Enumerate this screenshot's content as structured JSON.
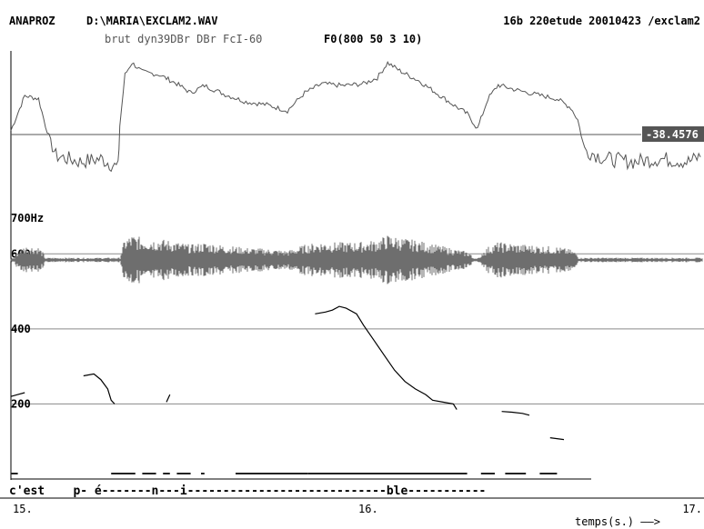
{
  "header": {
    "app": "ANAPROZ",
    "file": "D:\\MARIA\\EXCLAM2.WAV",
    "info": "16b 220etude 20010423 /exclam2",
    "params": "brut dyn39DBr  DBr FcI-60",
    "f0_params": "F0(800 50 3 10)"
  },
  "intensity_marker": "-38.4576",
  "freq_scale_label": "700Hz",
  "segmentation": "c'est    p- é-------n---i----------------------------ble-----------",
  "time_axis": {
    "unit_label": "temps(s.) ——>"
  },
  "colors": {
    "waveform": "#6e6e6e",
    "curve": "#000000",
    "gridline": "#8a8a8a"
  },
  "chart_data": {
    "type": "line",
    "title": "",
    "xlabel": "temps(s.)",
    "ylabel": "",
    "xlim": [
      15.0,
      17.0
    ],
    "ylim": [
      0,
      700
    ],
    "x_ticks": [
      {
        "v": 15.0,
        "label": "15."
      },
      {
        "v": 16.0,
        "label": "16."
      },
      {
        "v": 17.0,
        "label": "17."
      }
    ],
    "y_ticks": [
      {
        "v": 200,
        "label": "200"
      },
      {
        "v": 400,
        "label": "400"
      },
      {
        "v": 600,
        "label": "600"
      }
    ],
    "intensity_db": [
      {
        "x": 15.0,
        "y": -37.8
      },
      {
        "x": 15.04,
        "y": -32.0
      },
      {
        "x": 15.08,
        "y": -32.5
      },
      {
        "x": 15.1,
        "y": -37.0
      },
      {
        "x": 15.13,
        "y": -42.0
      },
      {
        "x": 15.2,
        "y": -43.0
      },
      {
        "x": 15.26,
        "y": -42.5
      },
      {
        "x": 15.31,
        "y": -44.0
      },
      {
        "x": 15.315,
        "y": -37.0
      },
      {
        "x": 15.33,
        "y": -28.5
      },
      {
        "x": 15.35,
        "y": -26.5
      },
      {
        "x": 15.38,
        "y": -28.0
      },
      {
        "x": 15.43,
        "y": -28.5
      },
      {
        "x": 15.48,
        "y": -30.0
      },
      {
        "x": 15.52,
        "y": -31.5
      },
      {
        "x": 15.56,
        "y": -30.3
      },
      {
        "x": 15.62,
        "y": -31.8
      },
      {
        "x": 15.68,
        "y": -33.0
      },
      {
        "x": 15.74,
        "y": -33.5
      },
      {
        "x": 15.8,
        "y": -34.5
      },
      {
        "x": 15.85,
        "y": -31.5
      },
      {
        "x": 15.9,
        "y": -30.0
      },
      {
        "x": 15.96,
        "y": -30.3
      },
      {
        "x": 16.02,
        "y": -30.0
      },
      {
        "x": 16.06,
        "y": -29.0
      },
      {
        "x": 16.09,
        "y": -26.5
      },
      {
        "x": 16.13,
        "y": -28.0
      },
      {
        "x": 16.18,
        "y": -29.5
      },
      {
        "x": 16.23,
        "y": -31.5
      },
      {
        "x": 16.28,
        "y": -33.5
      },
      {
        "x": 16.32,
        "y": -35.0
      },
      {
        "x": 16.35,
        "y": -37.5
      },
      {
        "x": 16.38,
        "y": -32.5
      },
      {
        "x": 16.41,
        "y": -30.2
      },
      {
        "x": 16.46,
        "y": -31.0
      },
      {
        "x": 16.52,
        "y": -31.8
      },
      {
        "x": 16.58,
        "y": -32.5
      },
      {
        "x": 16.62,
        "y": -34.0
      },
      {
        "x": 16.64,
        "y": -36.0
      },
      {
        "x": 16.66,
        "y": -41.0
      },
      {
        "x": 16.72,
        "y": -42.5
      },
      {
        "x": 16.8,
        "y": -43.0
      },
      {
        "x": 16.88,
        "y": -42.5
      },
      {
        "x": 16.96,
        "y": -43.0
      },
      {
        "x": 17.0,
        "y": -42.0
      }
    ],
    "f0_hz": [
      [
        {
          "x": 15.0,
          "y": 220
        },
        {
          "x": 15.02,
          "y": 225
        },
        {
          "x": 15.04,
          "y": 230
        }
      ],
      [
        {
          "x": 15.21,
          "y": 275
        },
        {
          "x": 15.24,
          "y": 280
        },
        {
          "x": 15.26,
          "y": 265
        },
        {
          "x": 15.28,
          "y": 240
        },
        {
          "x": 15.29,
          "y": 210
        },
        {
          "x": 15.3,
          "y": 200
        }
      ],
      [
        {
          "x": 15.45,
          "y": 205
        },
        {
          "x": 15.455,
          "y": 215
        },
        {
          "x": 15.46,
          "y": 225
        }
      ],
      [
        {
          "x": 15.88,
          "y": 440
        },
        {
          "x": 15.91,
          "y": 445
        },
        {
          "x": 15.93,
          "y": 450
        },
        {
          "x": 15.95,
          "y": 460
        },
        {
          "x": 15.97,
          "y": 455
        },
        {
          "x": 16.0,
          "y": 440
        },
        {
          "x": 16.02,
          "y": 410
        },
        {
          "x": 16.05,
          "y": 370
        },
        {
          "x": 16.08,
          "y": 330
        },
        {
          "x": 16.11,
          "y": 290
        },
        {
          "x": 16.14,
          "y": 260
        },
        {
          "x": 16.17,
          "y": 240
        },
        {
          "x": 16.2,
          "y": 225
        },
        {
          "x": 16.22,
          "y": 210
        },
        {
          "x": 16.25,
          "y": 205
        },
        {
          "x": 16.28,
          "y": 200
        },
        {
          "x": 16.29,
          "y": 185
        }
      ],
      [
        {
          "x": 16.42,
          "y": 180
        },
        {
          "x": 16.45,
          "y": 178
        },
        {
          "x": 16.48,
          "y": 175
        },
        {
          "x": 16.5,
          "y": 170
        }
      ],
      [
        {
          "x": 16.56,
          "y": 110
        },
        {
          "x": 16.6,
          "y": 105
        }
      ]
    ]
  }
}
